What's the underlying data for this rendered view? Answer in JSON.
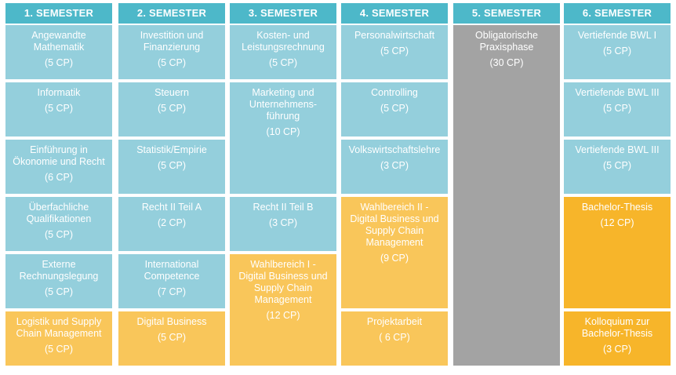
{
  "colors": {
    "header": "#4db8c9",
    "module": "#94cfdc",
    "practical": "#a3a3a3",
    "elective": "#f9c65a",
    "thesis": "#f7b52a"
  },
  "semesters": [
    {
      "header": "1. SEMESTER",
      "modules": [
        {
          "title": "Angewandte\nMathematik",
          "cp": "(5 CP)",
          "color": "module"
        },
        {
          "title": "Informatik",
          "cp": "(5 CP)",
          "color": "module"
        },
        {
          "title": "Einführung in\nÖkonomie und Recht",
          "cp": "(6 CP)",
          "color": "module"
        },
        {
          "title": "Überfachliche\nQualifikationen",
          "cp": "(5 CP)",
          "color": "module"
        },
        {
          "title": "Externe\nRechnungslegung",
          "cp": "(5 CP)",
          "color": "module"
        },
        {
          "title": "Logistik und Supply\nChain Management",
          "cp": "(5 CP)",
          "color": "elective"
        }
      ]
    },
    {
      "header": "2. SEMESTER",
      "modules": [
        {
          "title": "Investition und\nFinanzierung",
          "cp": "(5 CP)",
          "color": "module"
        },
        {
          "title": "Steuern",
          "cp": "(5 CP)",
          "color": "module"
        },
        {
          "title": "Statistik/Empirie",
          "cp": "(5 CP)",
          "color": "module"
        },
        {
          "title": "Recht II Teil A",
          "cp": "(2 CP)",
          "color": "module"
        },
        {
          "title": "International\nCompetence",
          "cp": "(7 CP)",
          "color": "module"
        },
        {
          "title": "Digital Business",
          "cp": "(5 CP)",
          "color": "elective"
        }
      ]
    },
    {
      "header": "3. SEMESTER",
      "modules": [
        {
          "title": "Kosten- und\nLeistungsrechnung",
          "cp": "(5 CP)",
          "color": "module"
        },
        {
          "title": "Marketing und\nUnternehmens-\nführung",
          "cp": "(10 CP)",
          "color": "module"
        },
        {
          "title": "Recht II Teil B",
          "cp": "(3 CP)",
          "color": "module"
        },
        {
          "title": "Wahlbereich I -\nDigital Business und\nSupply Chain\nManagement",
          "cp": "(12 CP)",
          "color": "elective"
        }
      ]
    },
    {
      "header": "4. SEMESTER",
      "modules": [
        {
          "title": "Personalwirtschaft",
          "cp": "(5 CP)",
          "color": "module"
        },
        {
          "title": "Controlling",
          "cp": "(5 CP)",
          "color": "module"
        },
        {
          "title": "Volkswirtschaftslehre",
          "cp": "(3 CP)",
          "color": "module"
        },
        {
          "title": "Wahlbereich II -\nDigital Business und\nSupply Chain\nManagement",
          "cp": "(9 CP)",
          "color": "elective"
        },
        {
          "title": "Projektarbeit",
          "cp": "( 6 CP)",
          "color": "elective"
        }
      ]
    },
    {
      "header": "5. SEMESTER",
      "modules": [
        {
          "title": "Obligatorische\nPraxisphase",
          "cp": "(30 CP)",
          "color": "practical"
        }
      ]
    },
    {
      "header": "6. SEMESTER",
      "modules": [
        {
          "title": "Vertiefende BWL I",
          "cp": "(5 CP)",
          "color": "module"
        },
        {
          "title": "Vertiefende BWL III",
          "cp": "(5 CP)",
          "color": "module"
        },
        {
          "title": "Vertiefende BWL III",
          "cp": "(5 CP)",
          "color": "module"
        },
        {
          "title": "Bachelor-Thesis",
          "cp": "(12 CP)",
          "color": "thesis"
        },
        {
          "title": "Kolloquium zur\nBachelor-Thesis",
          "cp": "(3 CP)",
          "color": "thesis"
        }
      ]
    }
  ]
}
